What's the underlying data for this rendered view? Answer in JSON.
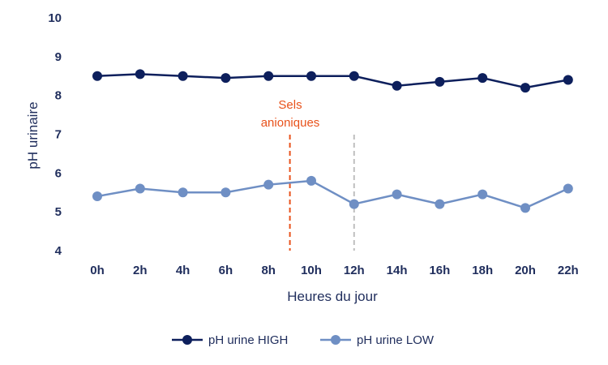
{
  "chart_data": {
    "type": "line",
    "categories": [
      "0h",
      "2h",
      "4h",
      "6h",
      "8h",
      "10h",
      "12h",
      "14h",
      "16h",
      "18h",
      "20h",
      "22h"
    ],
    "series": [
      {
        "name": "pH urine HIGH",
        "color": "#0d1f5c",
        "values": [
          8.5,
          8.55,
          8.5,
          8.45,
          8.5,
          8.5,
          8.5,
          8.25,
          8.35,
          8.45,
          8.2,
          8.4
        ]
      },
      {
        "name": "pH urine LOW",
        "color": "#6f8fc4",
        "values": [
          5.4,
          5.6,
          5.5,
          5.5,
          5.7,
          5.8,
          5.2,
          5.45,
          5.2,
          5.45,
          5.1,
          5.6
        ]
      }
    ],
    "xlabel": "Heures du jour",
    "ylabel": "pH urinaire",
    "ylim": [
      4,
      10
    ],
    "yticks": [
      "4",
      "5",
      "6",
      "7",
      "8",
      "9",
      "10"
    ],
    "grid": false,
    "legend_position": "bottom",
    "annotation": {
      "text_lines": [
        "Sels",
        "anioniques"
      ],
      "color": "#e8521b",
      "at_x": 9
    },
    "reference_line": {
      "at_x": 12,
      "color": "#bfbfbf"
    }
  }
}
